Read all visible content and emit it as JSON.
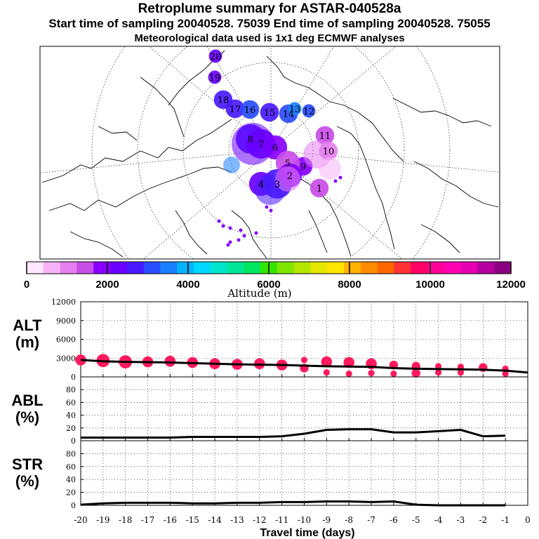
{
  "header": {
    "title": "Retroplume summary for ASTAR-040528a",
    "sampling": "Start time of sampling 20040528. 75039     End time of sampling 20040528. 75055",
    "met": "Meteorological data used is 1x1 deg ECMWF analyses"
  },
  "colorbar": {
    "label": "Altitude (m)",
    "tick_labels": [
      "0",
      "2000",
      "4000",
      "6000",
      "8000",
      "10000",
      "12000"
    ],
    "colors": [
      "#ffe6ff",
      "#f7b3f7",
      "#e680f0",
      "#c94de8",
      "#8800ff",
      "#6a00ff",
      "#4a1aff",
      "#2a4dff",
      "#1a80ff",
      "#00b3ff",
      "#00d9ff",
      "#00e6cc",
      "#00e699",
      "#00e660",
      "#33e600",
      "#80e600",
      "#b3e600",
      "#e6e600",
      "#ffe600",
      "#ffb300",
      "#ff8c00",
      "#ff6600",
      "#ff3333",
      "#ff0066",
      "#ff0099",
      "#ff00b3",
      "#e600b3",
      "#b3009e",
      "#8a0080"
    ]
  },
  "chart_data": [
    {
      "type": "scatter",
      "name": "alt",
      "ylabel": "ALT\n(m)",
      "xlabel": "Travel time (days)",
      "ylim": [
        0,
        12000
      ],
      "yticks": [
        0,
        3000,
        6000,
        9000,
        12000
      ],
      "xlim": [
        -20,
        0
      ],
      "xticks": [
        -20,
        -19,
        -18,
        -17,
        -16,
        -15,
        -14,
        -13,
        -12,
        -11,
        -10,
        -9,
        -8,
        -7,
        -6,
        -5,
        -4,
        -3,
        -2,
        -1,
        0
      ],
      "xtick_labels": [
        "-20",
        "-19",
        "-18",
        "-17",
        "-16",
        "-15",
        "-14",
        "-13",
        "-12",
        "-11",
        "-10",
        "-9",
        "-8",
        "-7",
        "-6",
        "-5",
        "-4",
        "-3",
        "-2",
        "-1",
        "0"
      ],
      "mean_line": {
        "x": [
          -20,
          -19,
          -18,
          -17,
          -16,
          -15,
          -14,
          -13,
          -12,
          -11,
          -10,
          -9,
          -8,
          -7,
          -6,
          -5,
          -4,
          -3,
          -2,
          -1,
          0
        ],
        "y": [
          2700,
          2500,
          2400,
          2350,
          2300,
          2200,
          2100,
          2000,
          1950,
          1900,
          1800,
          1700,
          1650,
          1600,
          1400,
          1300,
          1250,
          1200,
          1150,
          1000,
          700
        ]
      },
      "clusters": [
        {
          "x": -20,
          "y": 2700,
          "size": 3
        },
        {
          "x": -19,
          "y": 2600,
          "size": 4
        },
        {
          "x": -18,
          "y": 2400,
          "size": 4
        },
        {
          "x": -17,
          "y": 2400,
          "size": 3
        },
        {
          "x": -16,
          "y": 2500,
          "size": 3
        },
        {
          "x": -15,
          "y": 2300,
          "size": 3
        },
        {
          "x": -14,
          "y": 2100,
          "size": 3
        },
        {
          "x": -13,
          "y": 2000,
          "size": 3
        },
        {
          "x": -12,
          "y": 2100,
          "size": 3
        },
        {
          "x": -11,
          "y": 1900,
          "size": 3
        },
        {
          "x": -10,
          "y": 2700,
          "size": 1
        },
        {
          "x": -10,
          "y": 1400,
          "size": 2
        },
        {
          "x": -9,
          "y": 2400,
          "size": 3
        },
        {
          "x": -9,
          "y": 700,
          "size": 1
        },
        {
          "x": -8,
          "y": 2300,
          "size": 3
        },
        {
          "x": -8,
          "y": 500,
          "size": 1
        },
        {
          "x": -7,
          "y": 2100,
          "size": 3
        },
        {
          "x": -7,
          "y": 600,
          "size": 1
        },
        {
          "x": -6,
          "y": 1900,
          "size": 2
        },
        {
          "x": -6,
          "y": 500,
          "size": 1
        },
        {
          "x": -5,
          "y": 1700,
          "size": 2
        },
        {
          "x": -5,
          "y": 600,
          "size": 2
        },
        {
          "x": -4,
          "y": 1700,
          "size": 1
        },
        {
          "x": -4,
          "y": 700,
          "size": 1
        },
        {
          "x": -3,
          "y": 1600,
          "size": 1
        },
        {
          "x": -3,
          "y": 700,
          "size": 1
        },
        {
          "x": -2,
          "y": 1500,
          "size": 2
        },
        {
          "x": -1,
          "y": 1300,
          "size": 1
        },
        {
          "x": -1,
          "y": 500,
          "size": 1
        }
      ],
      "marker_color": "#ff1a5e"
    },
    {
      "type": "line",
      "name": "abl",
      "ylabel": "ABL\n(%)",
      "ylim": [
        0,
        100
      ],
      "yticks": [
        0,
        20,
        40,
        60,
        80
      ],
      "x": [
        -20,
        -19,
        -18,
        -17,
        -16,
        -15,
        -14,
        -13,
        -12,
        -11,
        -10,
        -9,
        -8,
        -7,
        -6,
        -5,
        -4,
        -3,
        -2,
        -1
      ],
      "y": [
        5,
        5,
        5,
        5,
        5,
        6,
        6,
        6,
        6,
        7,
        11,
        17,
        18,
        18,
        13,
        13,
        15,
        17,
        7,
        8
      ]
    },
    {
      "type": "line",
      "name": "str",
      "ylabel": "STR\n(%)",
      "ylim": [
        0,
        100
      ],
      "yticks": [
        0,
        20,
        40,
        60,
        80
      ],
      "x": [
        -20,
        -19,
        -18,
        -17,
        -16,
        -15,
        -14,
        -13,
        -12,
        -11,
        -10,
        -9,
        -8,
        -7,
        -6,
        -5,
        -4,
        -3,
        -2,
        -1
      ],
      "y": [
        1,
        3,
        4,
        4,
        4,
        3,
        3,
        4,
        4,
        5,
        5,
        6,
        6,
        5,
        6,
        1,
        0,
        0,
        0,
        0
      ]
    }
  ],
  "map": {
    "clusters": [
      {
        "label": "20",
        "color": "#6a00ff",
        "size": 1
      },
      {
        "label": "19",
        "color": "#6a00ff",
        "size": 1
      },
      {
        "label": "18",
        "color": "#4a1aff",
        "size": 2
      },
      {
        "label": "17",
        "color": "#4a1aff",
        "size": 2
      },
      {
        "label": "16",
        "color": "#2a4dff",
        "size": 2
      },
      {
        "label": "15",
        "color": "#4a1aff",
        "size": 2
      },
      {
        "label": "14",
        "color": "#2a4dff",
        "size": 2
      },
      {
        "label": "13",
        "color": "#1a80ff",
        "size": 1
      },
      {
        "label": "12",
        "color": "#2a4dff",
        "size": 1
      },
      {
        "label": "11",
        "color": "#c94de8",
        "size": 2
      },
      {
        "label": "10",
        "color": "#e680f0",
        "size": 2
      },
      {
        "label": "9",
        "color": "#8800ff",
        "size": 2
      },
      {
        "label": "8",
        "color": "#4a1aff",
        "size": 4
      },
      {
        "label": "7",
        "color": "#6a00ff",
        "size": 4
      },
      {
        "label": "6",
        "color": "#8800ff",
        "size": 3
      },
      {
        "label": "5",
        "color": "#c94de8",
        "size": 3
      },
      {
        "label": "4",
        "color": "#6a00ff",
        "size": 3
      },
      {
        "label": "3",
        "color": "#4a1aff",
        "size": 4
      },
      {
        "label": "2",
        "color": "#8800ff",
        "size": 3
      },
      {
        "label": "1",
        "color": "#c94de8",
        "size": 2
      }
    ]
  }
}
